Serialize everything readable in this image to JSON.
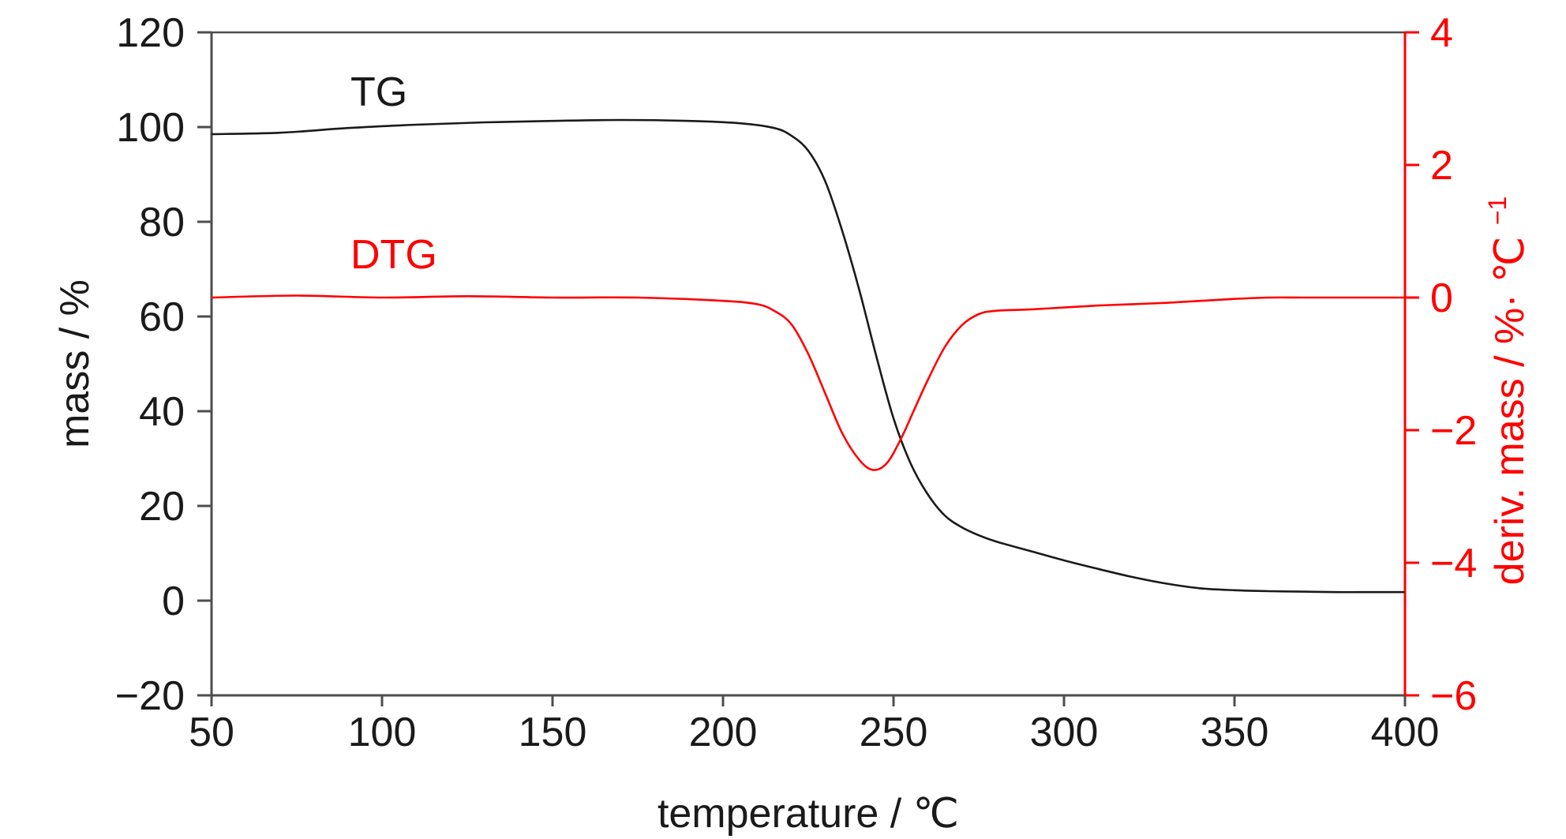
{
  "chart_data": {
    "type": "line",
    "xlabel": "temperature / ℃",
    "ylabel": "mass / %",
    "y2label": "deriv. mass / %· ℃",
    "y2label_sup": "−1",
    "xlim": [
      50,
      400
    ],
    "ylim": [
      -20,
      120
    ],
    "y2lim": [
      -6,
      4
    ],
    "xticks": [
      "50",
      "100",
      "150",
      "200",
      "250",
      "300",
      "350",
      "400"
    ],
    "yticks": [
      "−20",
      "0",
      "20",
      "40",
      "60",
      "80",
      "100",
      "120"
    ],
    "y2ticks": [
      "−6",
      "−4",
      "−2",
      "0",
      "2",
      "4"
    ],
    "grid": false,
    "legend": "inline labels",
    "series": [
      {
        "name": "TG",
        "color": "#1a1a1a",
        "axis": "left",
        "x": [
          50,
          70,
          90,
          110,
          130,
          150,
          170,
          190,
          205,
          215,
          220,
          225,
          230,
          235,
          240,
          245,
          250,
          255,
          260,
          265,
          270,
          275,
          280,
          290,
          300,
          310,
          320,
          330,
          340,
          350,
          360,
          370,
          380,
          390,
          400
        ],
        "y": [
          98.5,
          98.8,
          99.8,
          100.5,
          101.0,
          101.3,
          101.5,
          101.3,
          100.8,
          99.8,
          98.2,
          95.0,
          88.5,
          78.0,
          65.5,
          51.5,
          38.5,
          29.0,
          22.5,
          18.0,
          15.5,
          13.8,
          12.5,
          10.5,
          8.5,
          6.7,
          5.0,
          3.6,
          2.6,
          2.2,
          2.0,
          1.9,
          1.8,
          1.8,
          1.8
        ]
      },
      {
        "name": "DTG",
        "color": "#ff0000",
        "axis": "right",
        "x": [
          50,
          75,
          100,
          125,
          150,
          175,
          200,
          210,
          215,
          220,
          225,
          230,
          235,
          240,
          244,
          248,
          252,
          256,
          260,
          265,
          270,
          275,
          280,
          290,
          300,
          310,
          320,
          330,
          340,
          350,
          360,
          370,
          380,
          390,
          400
        ],
        "y": [
          0.0,
          0.03,
          0.0,
          0.02,
          0.0,
          0.0,
          -0.05,
          -0.1,
          -0.2,
          -0.4,
          -0.85,
          -1.45,
          -2.05,
          -2.45,
          -2.6,
          -2.5,
          -2.15,
          -1.7,
          -1.25,
          -0.75,
          -0.42,
          -0.25,
          -0.2,
          -0.18,
          -0.15,
          -0.12,
          -0.1,
          -0.08,
          -0.05,
          -0.02,
          0.0,
          0.0,
          0.0,
          0.0,
          0.0
        ]
      }
    ]
  }
}
